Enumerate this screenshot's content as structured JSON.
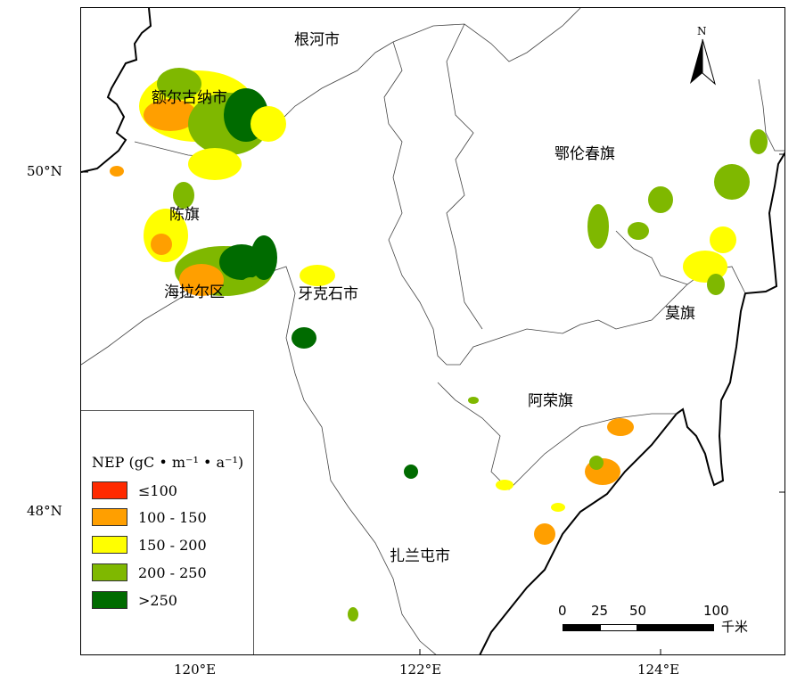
{
  "places": [
    {
      "id": "genhe",
      "name": "根河市"
    },
    {
      "id": "ergun",
      "name": "额尔古纳市"
    },
    {
      "id": "oroqen",
      "name": "鄂伦春旗"
    },
    {
      "id": "chenbarhu",
      "name": "陈旗"
    },
    {
      "id": "hailar",
      "name": "海拉尔区"
    },
    {
      "id": "yakeshi",
      "name": "牙克石市"
    },
    {
      "id": "molidawa",
      "name": "莫旗"
    },
    {
      "id": "arun",
      "name": "阿荣旗"
    },
    {
      "id": "zhalantun",
      "name": "扎兰屯市"
    }
  ],
  "axes": {
    "lat_50": "50°N",
    "lat_48": "48°N",
    "lon_120": "120°E",
    "lon_122": "122°E",
    "lon_124": "124°E"
  },
  "north": {
    "label": "N",
    "icon": "north-arrow-icon"
  },
  "legend": {
    "title": "NEP (gC • m⁻¹ • a⁻¹)",
    "items": [
      {
        "label": "≤100",
        "color": "#ff2a00"
      },
      {
        "label": "100 - 150",
        "color": "#ff9f00"
      },
      {
        "label": "150 - 200",
        "color": "#ffff00"
      },
      {
        "label": "200 - 250",
        "color": "#7fb800"
      },
      {
        "label": ">250",
        "color": "#006b00"
      }
    ]
  },
  "scale": {
    "ticks": [
      "0",
      "25",
      "50",
      "100"
    ],
    "unit": "千米"
  }
}
